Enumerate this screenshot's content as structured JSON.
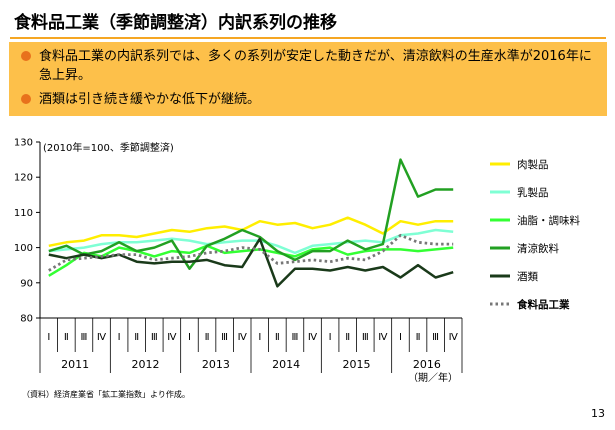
{
  "header": {
    "title": "食料品工業（季節調整済）内訳系列の推移"
  },
  "summary": {
    "bullets": [
      "食料品工業の内訳系列では、多くの系列が安定した動きだが、清涼飲料の生産水準が2016年に急上昇。",
      "酒類は引き続き緩やかな低下が継続。"
    ]
  },
  "chart_data": {
    "type": "line",
    "note": "(2010年=100、季節調整済)",
    "x_unit_label": "（期／年）",
    "quarters": [
      "Ⅰ",
      "Ⅱ",
      "Ⅲ",
      "Ⅳ",
      "Ⅰ",
      "Ⅱ",
      "Ⅲ",
      "Ⅳ",
      "Ⅰ",
      "Ⅱ",
      "Ⅲ",
      "Ⅳ",
      "Ⅰ",
      "Ⅱ",
      "Ⅲ",
      "Ⅳ",
      "Ⅰ",
      "Ⅱ",
      "Ⅲ",
      "Ⅳ",
      "Ⅰ",
      "Ⅱ",
      "Ⅲ",
      "Ⅳ"
    ],
    "years": [
      "2011",
      "2012",
      "2013",
      "2014",
      "2015",
      "2016"
    ],
    "ylim": [
      80,
      130
    ],
    "yticks": [
      80,
      90,
      100,
      110,
      120,
      130
    ],
    "grid": false,
    "legend_position": "right",
    "series": [
      {
        "name": "肉製品",
        "color": "#ffee00",
        "dash": false,
        "values": [
          100.5,
          101.5,
          102,
          103.5,
          103.5,
          103,
          104,
          105,
          104.5,
          105.5,
          106,
          105,
          107.5,
          106.5,
          107,
          105.5,
          106.5,
          108.5,
          106.5,
          104,
          107.5,
          106.5,
          107.5,
          107.5
        ]
      },
      {
        "name": "乳製品",
        "color": "#7fffd4",
        "dash": false,
        "values": [
          99,
          99.5,
          100,
          101,
          101.5,
          101.5,
          102,
          102.5,
          102,
          101,
          101.5,
          102,
          102,
          100.5,
          98.5,
          100.5,
          101,
          101.5,
          102,
          101.5,
          103.5,
          104,
          105,
          104.5
        ]
      },
      {
        "name": "油脂・調味料",
        "color": "#33ff33",
        "dash": false,
        "values": [
          92,
          95,
          98.5,
          97.5,
          100,
          99,
          97.5,
          99,
          98.5,
          100.5,
          98.5,
          99,
          99.5,
          98.5,
          97.5,
          99.5,
          100,
          98,
          99,
          99.5,
          99.5,
          99,
          99.5,
          100
        ]
      },
      {
        "name": "清涼飲料",
        "color": "#22a022",
        "dash": false,
        "values": [
          99,
          100.5,
          98,
          99,
          101.5,
          99,
          100,
          102,
          94,
          100.5,
          102.5,
          105,
          103,
          99,
          96.5,
          99,
          99,
          102,
          99.5,
          101,
          125,
          114.5,
          116.5,
          116.5
        ]
      },
      {
        "name": "酒類",
        "color": "#1a3a1a",
        "dash": false,
        "values": [
          98,
          97,
          98,
          97,
          98,
          96,
          95.5,
          96,
          96,
          96.5,
          95,
          94.5,
          102.5,
          89,
          94,
          94,
          93.5,
          94.5,
          93.5,
          94.5,
          91.5,
          95,
          91.5,
          93
        ]
      },
      {
        "name": "食料品工業",
        "color": "#777777",
        "dash": true,
        "values": [
          93.5,
          96.5,
          97,
          97.5,
          98,
          98,
          96.5,
          97,
          97.5,
          98.5,
          99,
          100,
          99.5,
          95.5,
          96,
          96.5,
          96,
          97,
          96.5,
          99,
          103.5,
          101.5,
          101,
          101
        ]
      }
    ]
  },
  "footer": {
    "source": "（資料）経済産業省「鉱工業指数」より作成。",
    "page_number": "13"
  }
}
